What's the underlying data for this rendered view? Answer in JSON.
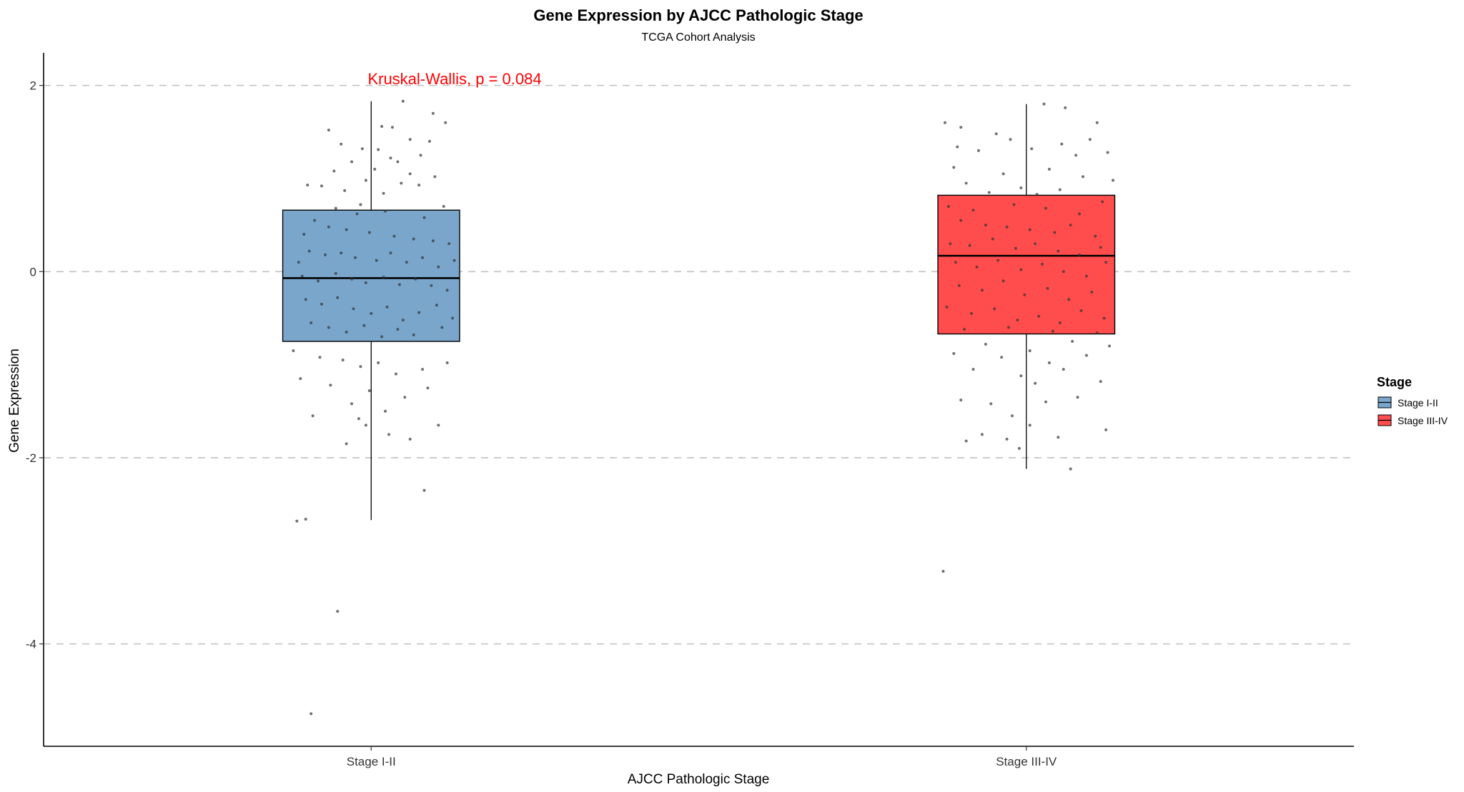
{
  "chart_data": {
    "type": "boxplot",
    "title": "Gene Expression by AJCC Pathologic Stage",
    "subtitle": "TCGA Cohort Analysis",
    "xlabel": "AJCC Pathologic Stage",
    "ylabel": "Gene Expression",
    "ylim": [
      -5.1,
      2.35
    ],
    "yticks": [
      2,
      0,
      -2,
      -4
    ],
    "grid": "horizontal dashed",
    "annotation": "Kruskal-Wallis, p = 0.084",
    "legend": {
      "title": "Stage",
      "placement": "right",
      "entries": [
        "Stage I-II",
        "Stage III-IV"
      ]
    },
    "groups": [
      {
        "category": "Stage I-II",
        "legend_label": "Stage I-II",
        "color": "#7aa6cc",
        "q1": -0.75,
        "median": -0.07,
        "q3": 0.66,
        "whisker_low": -2.67,
        "whisker_high": 1.83,
        "outliers": [
          -3.65,
          -4.75
        ],
        "points": [
          [
            0.68,
            1.83
          ],
          [
            0.85,
            1.7
          ],
          [
            0.62,
            1.55
          ],
          [
            0.56,
            1.56
          ],
          [
            0.92,
            1.6
          ],
          [
            0.72,
            1.42
          ],
          [
            0.83,
            1.4
          ],
          [
            0.33,
            1.37
          ],
          [
            0.45,
            1.32
          ],
          [
            0.54,
            1.31
          ],
          [
            0.78,
            1.25
          ],
          [
            0.61,
            1.22
          ],
          [
            0.26,
            1.52
          ],
          [
            0.39,
            1.18
          ],
          [
            0.65,
            1.18
          ],
          [
            0.52,
            1.1
          ],
          [
            0.72,
            1.05
          ],
          [
            0.86,
            1.02
          ],
          [
            0.29,
            1.08
          ],
          [
            0.47,
            0.98
          ],
          [
            0.67,
            0.95
          ],
          [
            0.22,
            0.92
          ],
          [
            0.77,
            0.93
          ],
          [
            0.35,
            0.87
          ],
          [
            0.57,
            0.84
          ],
          [
            0.44,
            0.72
          ],
          [
            0.91,
            0.7
          ],
          [
            0.14,
            0.93
          ],
          [
            0.3,
            0.68
          ],
          [
            0.42,
            0.62
          ],
          [
            0.58,
            0.65
          ],
          [
            0.8,
            0.58
          ],
          [
            0.12,
            0.4
          ],
          [
            0.18,
            0.55
          ],
          [
            0.26,
            0.48
          ],
          [
            0.36,
            0.45
          ],
          [
            0.49,
            0.42
          ],
          [
            0.63,
            0.38
          ],
          [
            0.74,
            0.35
          ],
          [
            0.85,
            0.33
          ],
          [
            0.94,
            0.3
          ],
          [
            0.09,
            0.1
          ],
          [
            0.15,
            0.22
          ],
          [
            0.24,
            0.18
          ],
          [
            0.33,
            0.2
          ],
          [
            0.41,
            0.15
          ],
          [
            0.53,
            0.12
          ],
          [
            0.61,
            0.2
          ],
          [
            0.7,
            0.1
          ],
          [
            0.79,
            0.15
          ],
          [
            0.88,
            0.05
          ],
          [
            0.97,
            0.12
          ],
          [
            0.11,
            -0.05
          ],
          [
            0.2,
            -0.1
          ],
          [
            0.3,
            -0.02
          ],
          [
            0.39,
            -0.08
          ],
          [
            0.47,
            -0.12
          ],
          [
            0.57,
            -0.06
          ],
          [
            0.66,
            -0.14
          ],
          [
            0.75,
            -0.08
          ],
          [
            0.84,
            -0.15
          ],
          [
            0.93,
            -0.2
          ],
          [
            0.13,
            -0.3
          ],
          [
            0.22,
            -0.35
          ],
          [
            0.31,
            -0.28
          ],
          [
            0.4,
            -0.4
          ],
          [
            0.5,
            -0.45
          ],
          [
            0.59,
            -0.38
          ],
          [
            0.68,
            -0.52
          ],
          [
            0.77,
            -0.44
          ],
          [
            0.87,
            -0.36
          ],
          [
            0.96,
            -0.5
          ],
          [
            0.16,
            -0.55
          ],
          [
            0.26,
            -0.6
          ],
          [
            0.36,
            -0.65
          ],
          [
            0.46,
            -0.58
          ],
          [
            0.56,
            -0.7
          ],
          [
            0.65,
            -0.62
          ],
          [
            0.74,
            -0.68
          ],
          [
            0.9,
            -0.6
          ],
          [
            0.06,
            -0.85
          ],
          [
            0.21,
            -0.92
          ],
          [
            0.34,
            -0.95
          ],
          [
            0.44,
            -1.02
          ],
          [
            0.54,
            -0.98
          ],
          [
            0.64,
            -1.1
          ],
          [
            0.79,
            -1.05
          ],
          [
            0.93,
            -0.98
          ],
          [
            0.1,
            -1.15
          ],
          [
            0.27,
            -1.22
          ],
          [
            0.49,
            -1.28
          ],
          [
            0.69,
            -1.35
          ],
          [
            0.82,
            -1.25
          ],
          [
            0.39,
            -1.42
          ],
          [
            0.58,
            -1.5
          ],
          [
            0.43,
            -1.58
          ],
          [
            0.47,
            -1.65
          ],
          [
            0.6,
            -1.75
          ],
          [
            0.72,
            -1.8
          ],
          [
            0.36,
            -1.85
          ],
          [
            0.88,
            -1.65
          ],
          [
            0.17,
            -1.55
          ],
          [
            0.8,
            -2.35
          ],
          [
            0.08,
            -2.68
          ],
          [
            0.13,
            -2.66
          ],
          [
            0.31,
            -3.65
          ],
          [
            0.16,
            -4.75
          ]
        ]
      },
      {
        "category": "Stage III-IV",
        "legend_label": "Stage III-IV",
        "color": "#ff4d4d",
        "q1": -0.67,
        "median": 0.17,
        "q3": 0.82,
        "whisker_low": -2.12,
        "whisker_high": 1.8,
        "outliers": [
          -3.22
        ],
        "points": [
          [
            0.6,
            1.8
          ],
          [
            0.72,
            1.76
          ],
          [
            0.04,
            1.6
          ],
          [
            0.13,
            1.55
          ],
          [
            0.9,
            1.6
          ],
          [
            0.33,
            1.48
          ],
          [
            0.41,
            1.42
          ],
          [
            0.7,
            1.37
          ],
          [
            0.86,
            1.42
          ],
          [
            0.11,
            1.34
          ],
          [
            0.23,
            1.3
          ],
          [
            0.53,
            1.32
          ],
          [
            0.78,
            1.25
          ],
          [
            0.96,
            1.28
          ],
          [
            0.09,
            1.12
          ],
          [
            0.37,
            1.05
          ],
          [
            0.63,
            1.1
          ],
          [
            0.82,
            1.02
          ],
          [
            0.16,
            0.95
          ],
          [
            0.47,
            0.9
          ],
          [
            0.69,
            0.88
          ],
          [
            0.99,
            0.98
          ],
          [
            0.29,
            0.85
          ],
          [
            0.56,
            0.83
          ],
          [
            0.06,
            0.7
          ],
          [
            0.2,
            0.66
          ],
          [
            0.43,
            0.72
          ],
          [
            0.61,
            0.68
          ],
          [
            0.8,
            0.62
          ],
          [
            0.93,
            0.75
          ],
          [
            0.13,
            0.55
          ],
          [
            0.27,
            0.5
          ],
          [
            0.39,
            0.48
          ],
          [
            0.52,
            0.45
          ],
          [
            0.66,
            0.42
          ],
          [
            0.75,
            0.5
          ],
          [
            0.89,
            0.38
          ],
          [
            0.07,
            0.3
          ],
          [
            0.18,
            0.28
          ],
          [
            0.31,
            0.35
          ],
          [
            0.44,
            0.25
          ],
          [
            0.55,
            0.3
          ],
          [
            0.68,
            0.22
          ],
          [
            0.8,
            0.18
          ],
          [
            0.92,
            0.26
          ],
          [
            0.1,
            0.1
          ],
          [
            0.22,
            0.05
          ],
          [
            0.34,
            0.12
          ],
          [
            0.47,
            0.02
          ],
          [
            0.59,
            0.08
          ],
          [
            0.71,
            0.0
          ],
          [
            0.84,
            -0.05
          ],
          [
            0.95,
            0.1
          ],
          [
            0.12,
            -0.15
          ],
          [
            0.25,
            -0.2
          ],
          [
            0.37,
            -0.1
          ],
          [
            0.49,
            -0.25
          ],
          [
            0.62,
            -0.18
          ],
          [
            0.74,
            -0.3
          ],
          [
            0.87,
            -0.22
          ],
          [
            0.05,
            -0.38
          ],
          [
            0.19,
            -0.45
          ],
          [
            0.32,
            -0.4
          ],
          [
            0.45,
            -0.52
          ],
          [
            0.57,
            -0.48
          ],
          [
            0.69,
            -0.55
          ],
          [
            0.81,
            -0.42
          ],
          [
            0.94,
            -0.5
          ],
          [
            0.15,
            -0.62
          ],
          [
            0.4,
            -0.6
          ],
          [
            0.65,
            -0.64
          ],
          [
            0.9,
            -0.66
          ],
          [
            0.27,
            -0.78
          ],
          [
            0.52,
            -0.85
          ],
          [
            0.76,
            -0.75
          ],
          [
            0.97,
            -0.8
          ],
          [
            0.09,
            -0.88
          ],
          [
            0.36,
            -0.92
          ],
          [
            0.63,
            -0.98
          ],
          [
            0.84,
            -0.9
          ],
          [
            0.2,
            -1.05
          ],
          [
            0.47,
            -1.12
          ],
          [
            0.71,
            -1.05
          ],
          [
            0.92,
            -1.18
          ],
          [
            0.55,
            -1.2
          ],
          [
            0.13,
            -1.38
          ],
          [
            0.3,
            -1.42
          ],
          [
            0.79,
            -1.35
          ],
          [
            0.42,
            -1.55
          ],
          [
            0.61,
            -1.4
          ],
          [
            0.25,
            -1.75
          ],
          [
            0.39,
            -1.8
          ],
          [
            0.52,
            -1.65
          ],
          [
            0.68,
            -1.78
          ],
          [
            0.46,
            -1.9
          ],
          [
            0.95,
            -1.7
          ],
          [
            0.16,
            -1.82
          ],
          [
            0.75,
            -2.12
          ],
          [
            0.03,
            -3.22
          ]
        ]
      }
    ]
  }
}
